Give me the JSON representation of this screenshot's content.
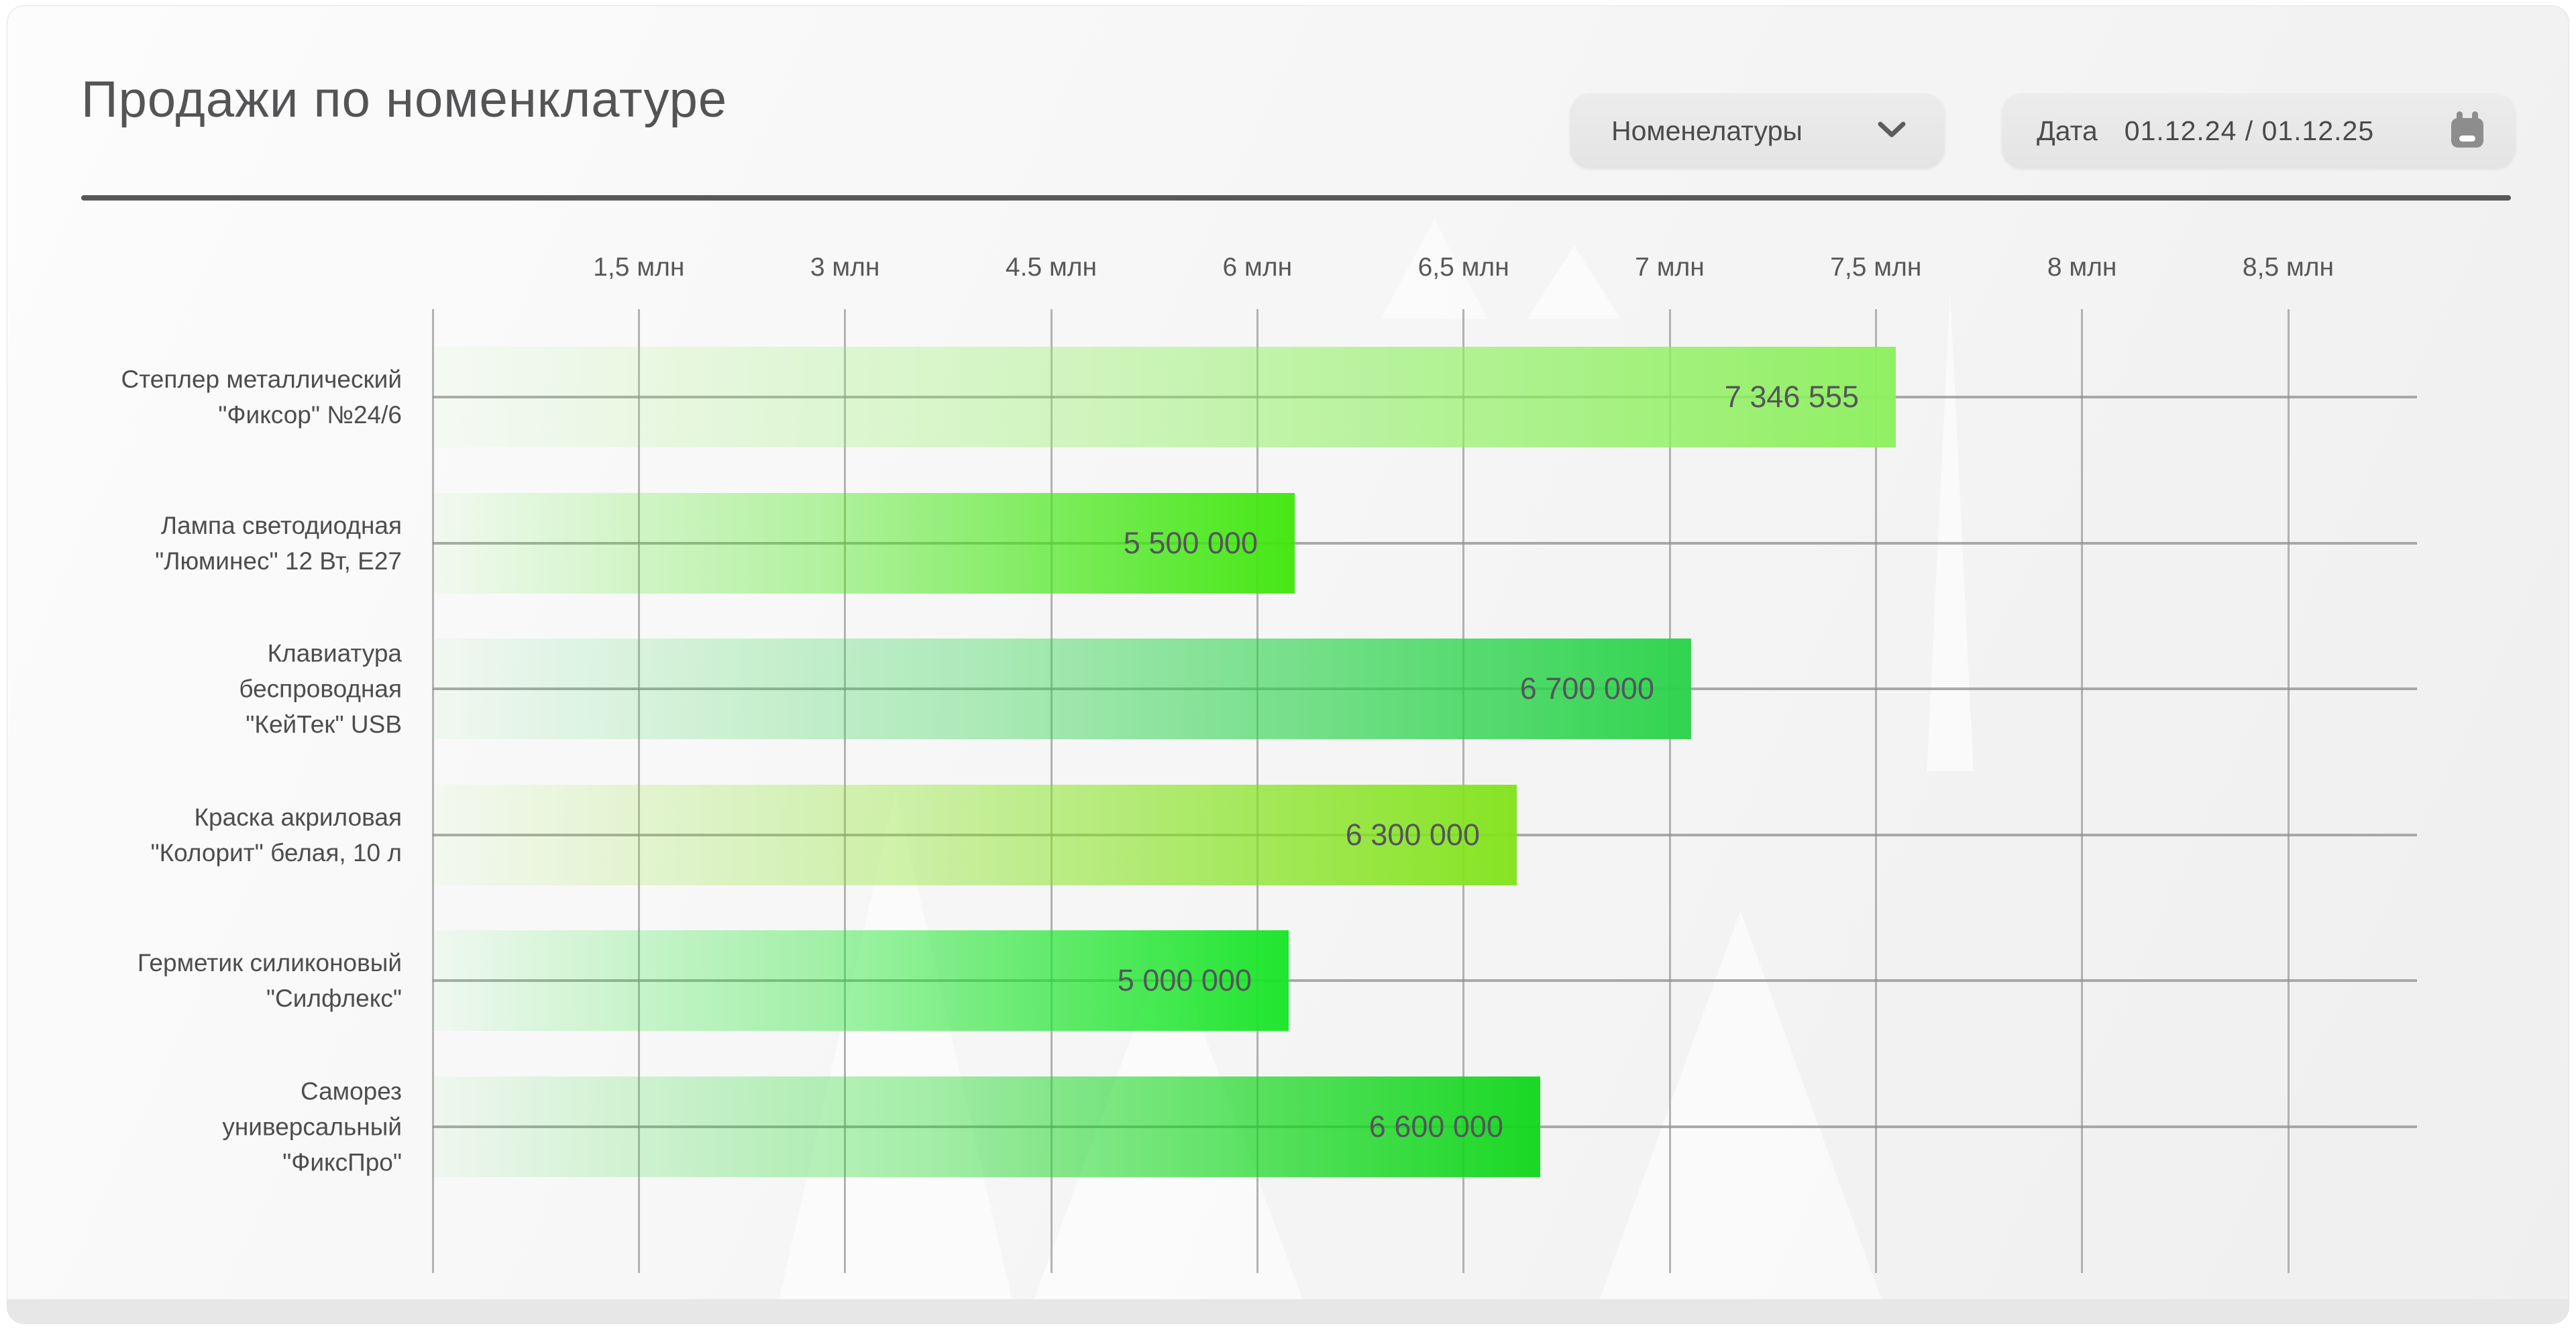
{
  "page": {
    "title": "Продажи по номенклатуре"
  },
  "controls": {
    "category_dropdown": {
      "label": "Номенелатуры",
      "icon": "chevron-down"
    },
    "date_filter": {
      "label": "Дата",
      "value": "01.12.24 / 01.12.25",
      "icon": "calendar"
    }
  },
  "chart_data": {
    "type": "bar",
    "orientation": "horizontal",
    "title": "Продажи по номенклатуре",
    "x_axis": {
      "position": "top",
      "tick_labels": [
        "1,5 млн",
        "3 млн",
        "4.5 млн",
        "6 млн",
        "6,5 млн",
        "7 млн",
        "7,5 млн",
        "8 млн",
        "8,5 млн"
      ],
      "unit": "млн"
    },
    "grid": true,
    "legend": false,
    "categories": [
      "Степлер металлический\n\"Фиксор\" №24/6",
      "Лампа светодиодная\n\"Люминес\" 12 Вт, E27",
      "Клавиатура\nбеспроводная\n\"КейТек\" USB",
      "Краска акриловая\n\"Колорит\" белая, 10 л",
      "Герметик силиконовый\n\"Силфлекс\"",
      "Саморез\nуниверсальный\n\"ФиксПро\""
    ],
    "values": [
      7346555,
      5500000,
      6700000,
      6300000,
      5000000,
      6600000
    ],
    "value_labels": [
      "7 346 555",
      "5 500 000",
      "6 700 000",
      "6 300 000",
      "5 000 000",
      "6 600 000"
    ],
    "bar_colors": [
      "#8df05e",
      "#40e70f",
      "#2bd34b",
      "#83e31c",
      "#19e528",
      "#13d71d"
    ],
    "bar_fractions": [
      0.737,
      0.434,
      0.634,
      0.546,
      0.431,
      0.558
    ]
  }
}
